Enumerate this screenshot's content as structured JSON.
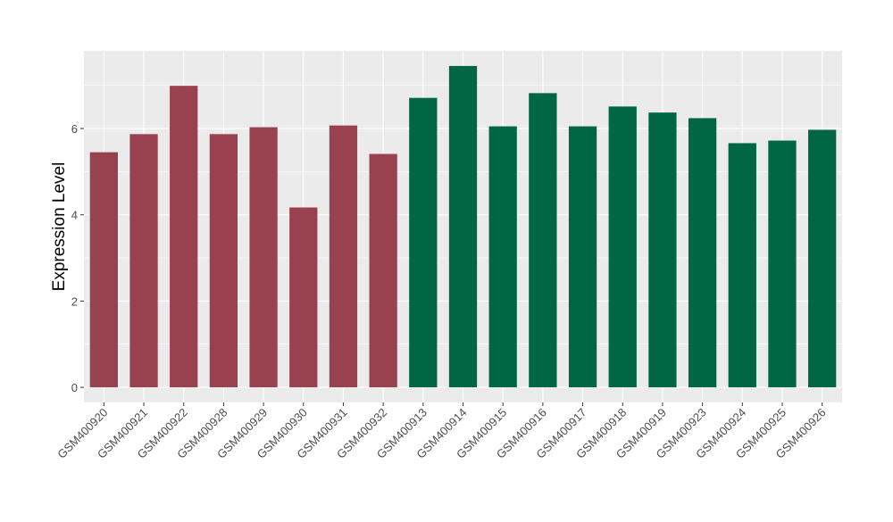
{
  "chart_data": {
    "type": "bar",
    "title": "",
    "xlabel": "",
    "ylabel": "Expression Level",
    "ylim": [
      -0.35,
      7.8
    ],
    "yticks": [
      0,
      2,
      4,
      6
    ],
    "grid": true,
    "legend": "none",
    "categories": [
      "GSM400920",
      "GSM400921",
      "GSM400922",
      "GSM400928",
      "GSM400929",
      "GSM400930",
      "GSM400931",
      "GSM400932",
      "GSM400913",
      "GSM400914",
      "GSM400915",
      "GSM400916",
      "GSM400917",
      "GSM400918",
      "GSM400919",
      "GSM400923",
      "GSM400924",
      "GSM400925",
      "GSM400926"
    ],
    "values": [
      5.45,
      5.87,
      6.99,
      5.87,
      6.03,
      4.17,
      6.07,
      5.41,
      6.71,
      7.45,
      6.05,
      6.82,
      6.05,
      6.51,
      6.37,
      6.24,
      5.66,
      5.72,
      5.97
    ],
    "groups": [
      "group-1",
      "group-1",
      "group-1",
      "group-1",
      "group-1",
      "group-1",
      "group-1",
      "group-1",
      "group-2",
      "group-2",
      "group-2",
      "group-2",
      "group-2",
      "group-2",
      "group-2",
      "group-2",
      "group-2",
      "group-2",
      "group-2"
    ],
    "colors": {
      "group-1": "#9A4150",
      "group-2": "#006643",
      "panel_background": "#EBEBEB",
      "gridline": "#FFFFFF"
    }
  }
}
